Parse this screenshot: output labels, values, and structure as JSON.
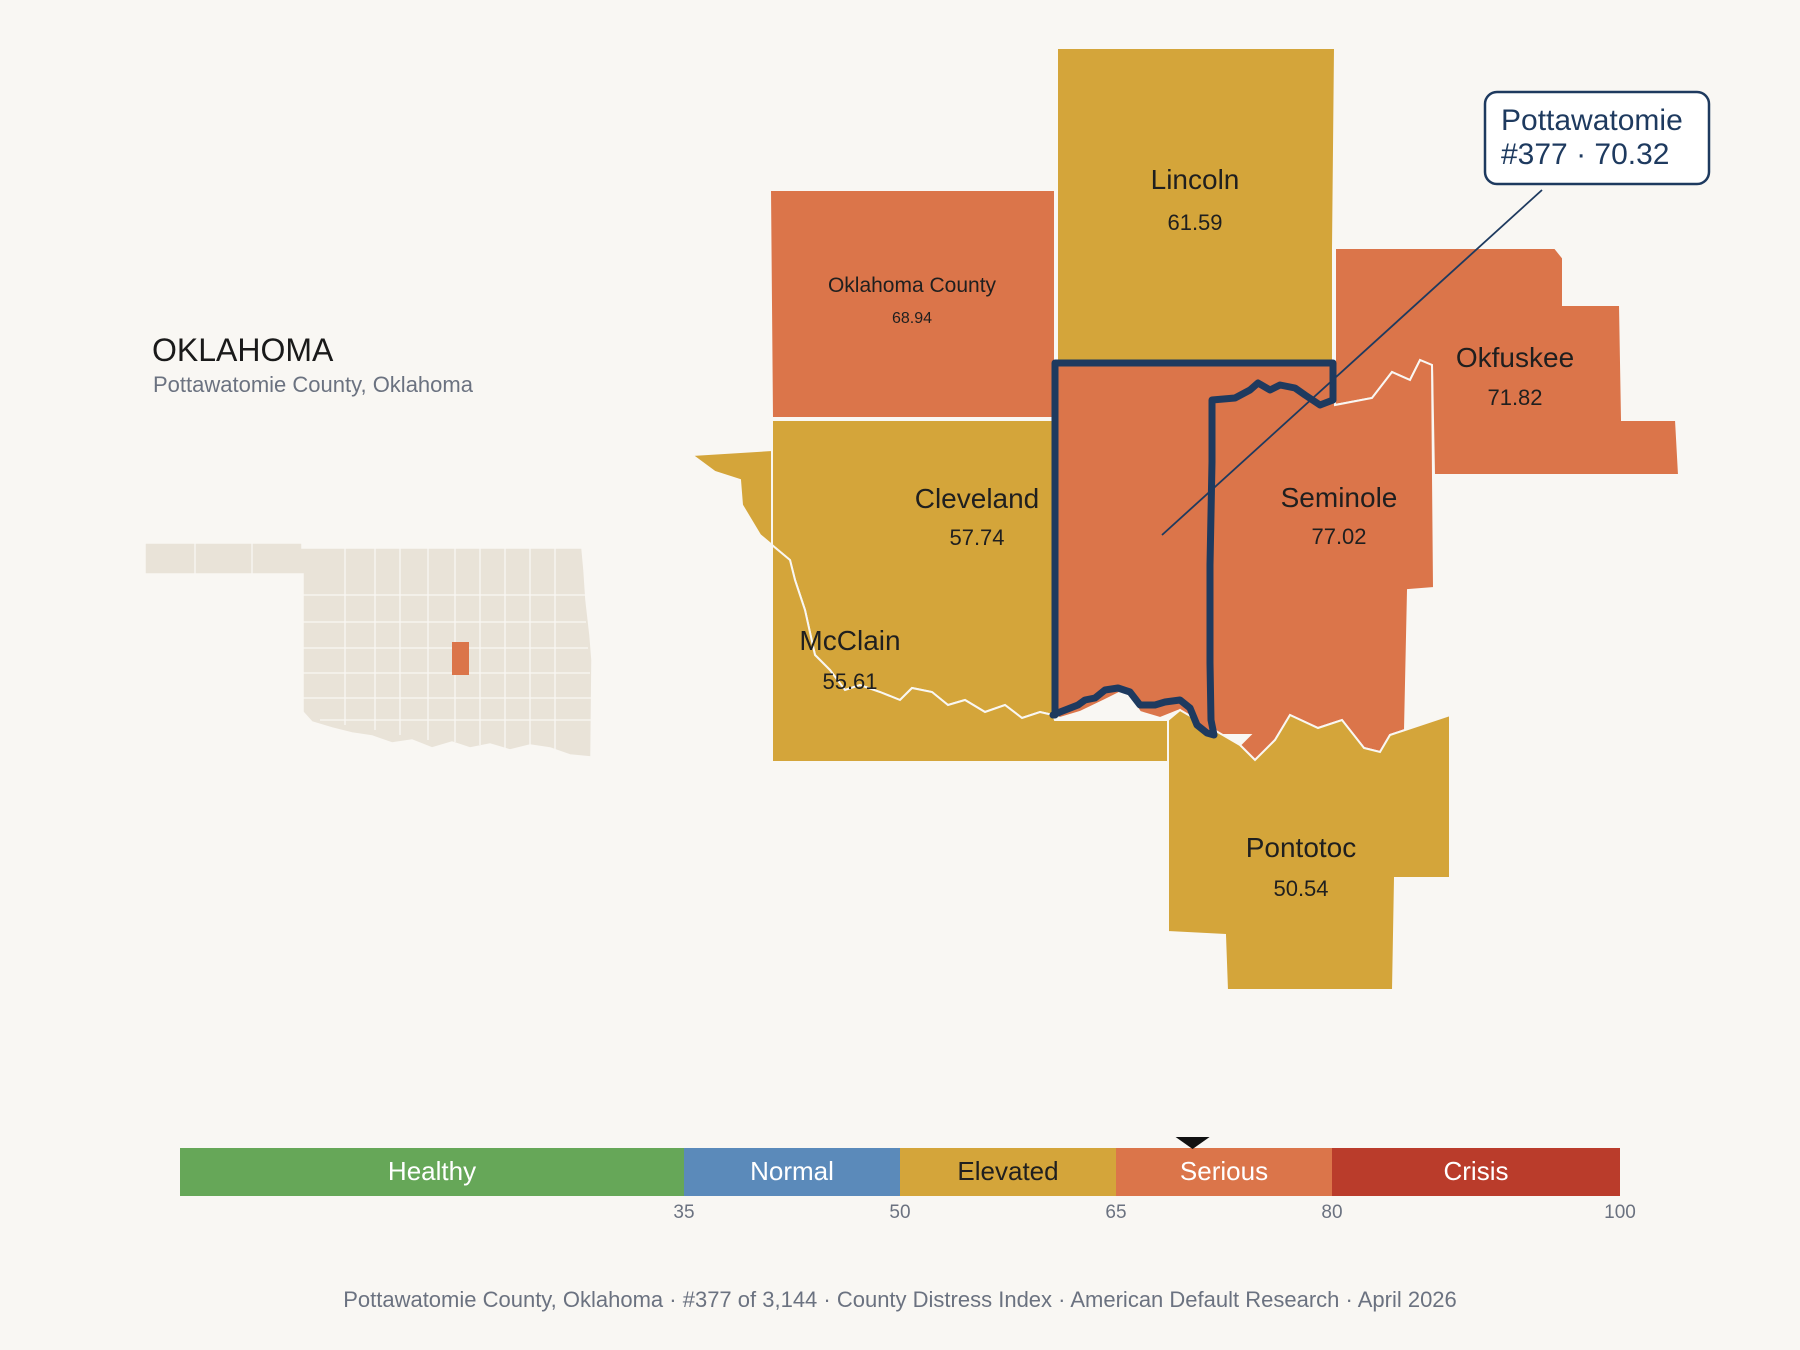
{
  "title": "OKLAHOMA",
  "subtitle": "Pottawatomie County, Oklahoma",
  "colors": {
    "background": "#f9f7f3",
    "elevated": "#d4a53a",
    "serious": "#db754a",
    "inset_fill": "#e9e3d8",
    "highlight_outline": "#1e3a5f"
  },
  "counties": [
    {
      "id": "lincoln",
      "name": "Lincoln",
      "value": "61.59",
      "band": "elevated"
    },
    {
      "id": "oklahoma",
      "name": "Oklahoma County",
      "value": "68.94",
      "band": "serious"
    },
    {
      "id": "okfuskee",
      "name": "Okfuskee",
      "value": "71.82",
      "band": "serious"
    },
    {
      "id": "cleveland",
      "name": "Cleveland",
      "value": "57.74",
      "band": "elevated"
    },
    {
      "id": "mcclain",
      "name": "McClain",
      "value": "55.61",
      "band": "elevated"
    },
    {
      "id": "seminole",
      "name": "Seminole",
      "value": "77.02",
      "band": "serious"
    },
    {
      "id": "pontotoc",
      "name": "Pontotoc",
      "value": "50.54",
      "band": "elevated"
    },
    {
      "id": "pottawatomie",
      "name": "Pottawatomie",
      "value": "70.32",
      "band": "serious",
      "rank": "#377"
    }
  ],
  "callout": {
    "line1": "Pottawatomie",
    "line2": "#377 · 70.32"
  },
  "legend": {
    "min": 0,
    "max": 100,
    "marker_value": 70.32,
    "segments": [
      {
        "label": "Healthy",
        "from": 0,
        "to": 35,
        "color": "#66a758",
        "text_color": "#ffffff"
      },
      {
        "label": "Normal",
        "from": 35,
        "to": 50,
        "color": "#5b8aba",
        "text_color": "#ffffff"
      },
      {
        "label": "Elevated",
        "from": 50,
        "to": 65,
        "color": "#d4a53a",
        "text_color": "#1f1f1f"
      },
      {
        "label": "Serious",
        "from": 65,
        "to": 80,
        "color": "#db754a",
        "text_color": "#ffffff"
      },
      {
        "label": "Crisis",
        "from": 80,
        "to": 100,
        "color": "#ba3c2b",
        "text_color": "#ffffff"
      }
    ],
    "ticks": [
      "35",
      "50",
      "65",
      "80",
      "100"
    ]
  },
  "footer": "Pottawatomie County, Oklahoma  ·  #377 of 3,144  ·  County Distress Index  ·  American Default Research  ·  April 2026"
}
